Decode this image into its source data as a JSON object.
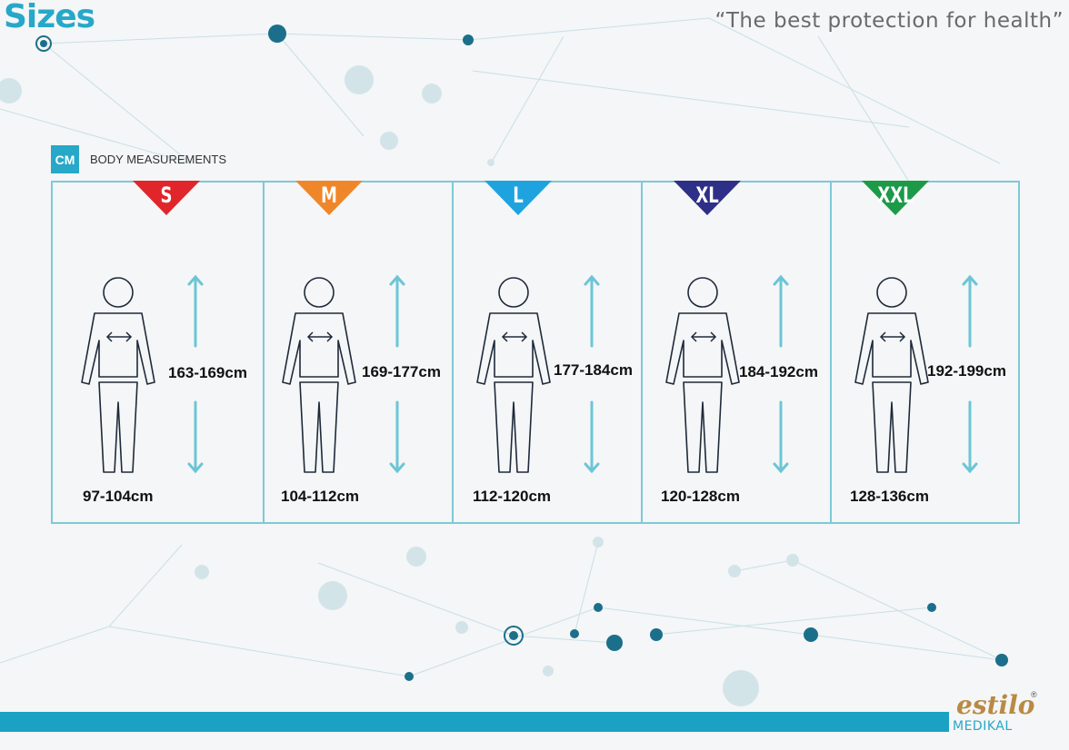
{
  "header": {
    "title": "Sizes",
    "tagline": "“The best protection for health”"
  },
  "section": {
    "unit": "CM",
    "label": "BODY MEASUREMENTS"
  },
  "sizes": [
    {
      "label": "S",
      "color": "#e0262b",
      "height": "163-169cm",
      "chest": "97-104cm"
    },
    {
      "label": "M",
      "color": "#f0862a",
      "height": "169-177cm",
      "chest": "104-112cm"
    },
    {
      "label": "L",
      "color": "#1ea3df",
      "height": "177-184cm",
      "chest": "112-120cm"
    },
    {
      "label": "XL",
      "color": "#2e2f87",
      "height": "184-192cm",
      "chest": "120-128cm"
    },
    {
      "label": "XXL",
      "color": "#1d9a48",
      "height": "192-199cm",
      "chest": "128-136cm"
    }
  ],
  "icons": {
    "body": "person-outline-icon",
    "height": "vertical-double-arrow-icon",
    "chest": "horizontal-double-arrow-icon"
  },
  "logo": {
    "name": "estilo",
    "sub": "MEDIKAL",
    "reg": "®"
  },
  "colors": {
    "accent": "#27a8c8",
    "border": "#7ec9d8",
    "arrow": "#6cc5d6",
    "figure": "#1e2a3a"
  }
}
